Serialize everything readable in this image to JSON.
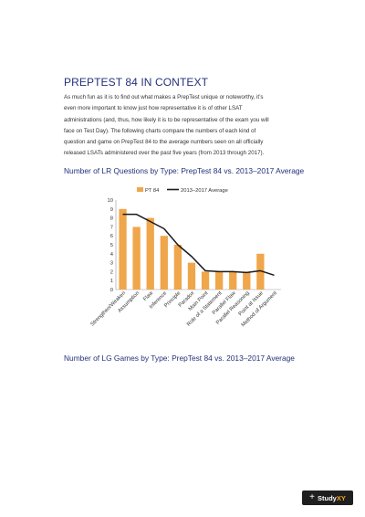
{
  "section": {
    "title": "PREPTEST 84 IN CONTEXT",
    "paragraph_lines": [
      "As much fun as it is to find out what makes a PrepTest unique or noteworthy, it’s",
      "even more important to know just how representative it is of other LSAT",
      "administrations (and, thus, how likely it is to be representative of the exam you will",
      "face on Test Day). The following charts compare the numbers of each kind of",
      "question and game on PrepTest 84 to the average numbers seen on all officially",
      "released LSATs administered over the past five years (from 2013 through 2017)."
    ]
  },
  "chart_headings": {
    "lr": "Number of LR Questions by Type: PrepTest 84 vs. 2013–2017 Average",
    "lg": "Number of LG Games by Type: PrepTest 84 vs. 2013–2017 Average"
  },
  "chart_data": {
    "type": "bar",
    "categories": [
      "Strengthen/Weaken",
      "Assumption",
      "Flaw",
      "Inference",
      "Principle",
      "Paradox",
      "Main Point",
      "Role of a Statement",
      "Parallel Flaw",
      "Parallel Reasoning",
      "Point at Issue",
      "Method of Argument"
    ],
    "series": [
      {
        "name": "PT 84",
        "type": "bar",
        "color": "#f0a64a",
        "values": [
          9,
          7,
          8,
          6,
          5,
          3,
          2,
          2,
          2,
          2,
          4,
          0
        ]
      },
      {
        "name": "2013–2017 Average",
        "type": "line",
        "color": "#1a1a1a",
        "values": [
          8.4,
          8.4,
          7.6,
          6.8,
          5.0,
          3.7,
          2.1,
          2.0,
          2.0,
          1.9,
          2.1,
          1.6
        ]
      }
    ],
    "ylim": [
      0,
      10
    ],
    "yticks": [
      "0",
      "1",
      "2",
      "3",
      "4",
      "5",
      "6",
      "7",
      "8",
      "9",
      "10"
    ],
    "grid": false,
    "legend_position": "top"
  },
  "brand": {
    "plus": "+",
    "name_prefix": "Study",
    "name_suffix": "XY"
  }
}
